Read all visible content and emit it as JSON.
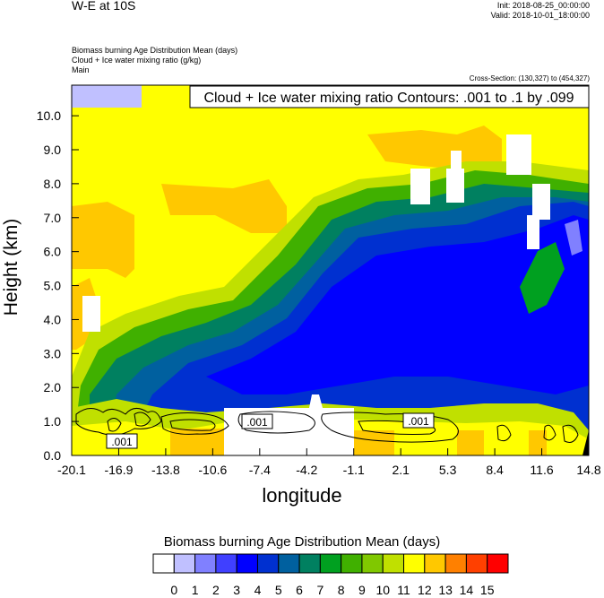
{
  "header": {
    "title": "W-E at 10S",
    "init": "Init: 2018-08-25_00:00:00",
    "valid": "Valid: 2018-10-01_18:00:00",
    "lines": [
      "Biomass burning Age Distribution Mean   (days)",
      "Cloud + Ice water mixing ratio   (g/kg)",
      "Main"
    ],
    "cross_section": "Cross-Section: (130,327) to (454,327)"
  },
  "chart_data": {
    "type": "heatmap",
    "xlabel": "longitude",
    "ylabel": "Height (km)",
    "x_ticks": [
      "-20.1",
      "-16.9",
      "-13.8",
      "-10.6",
      "-7.4",
      "-4.2",
      "-1.1",
      "2.1",
      "5.3",
      "8.4",
      "11.6",
      "14.8"
    ],
    "y_ticks": [
      "0.0",
      "1.0",
      "2.0",
      "3.0",
      "4.0",
      "5.0",
      "6.0",
      "7.0",
      "8.0",
      "9.0",
      "10.0"
    ],
    "xlim": [
      -20.1,
      14.8
    ],
    "ylim": [
      0.0,
      10.9
    ],
    "contour_title": "Cloud + Ice water mixing ratio Contours: .001 to .1 by .099",
    "contour_labels": [
      ".001",
      ".001",
      ".001"
    ],
    "contour_levels": [
      0.001,
      0.1
    ],
    "colorbar": {
      "title": "Biomass burning Age Distribution Mean  (days)",
      "labels": [
        "0",
        "1",
        "2",
        "3",
        "4",
        "5",
        "6",
        "7",
        "8",
        "9",
        "10",
        "11",
        "12",
        "13",
        "14",
        "15"
      ],
      "colors": [
        "#ffffff",
        "#c0c0ff",
        "#8080ff",
        "#4040ff",
        "#0000ff",
        "#0030d0",
        "#00609f",
        "#008060",
        "#00a020",
        "#40b000",
        "#80c800",
        "#c0e000",
        "#ffff00",
        "#ffc800",
        "#ff8000",
        "#ff4000",
        "#ff0000"
      ]
    }
  }
}
